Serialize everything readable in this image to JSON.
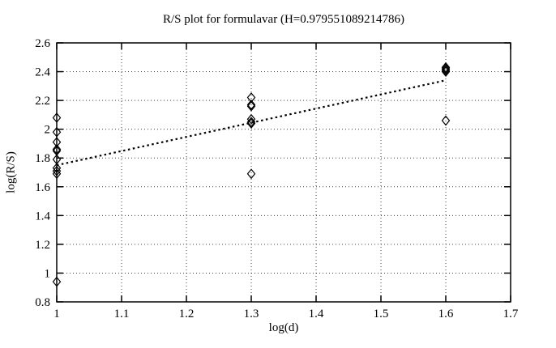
{
  "figure": {
    "background": "#ffffff",
    "foreground": "#000000",
    "grid_color": "#000000",
    "marker": "open-diamond"
  },
  "chart_data": {
    "type": "scatter",
    "title": "R/S plot for formulavar (H=0.979551089214786)",
    "hurst_exponent": "0.979551089214786",
    "xlabel": "log(d)",
    "ylabel": "log(R/S)",
    "xlim": [
      1.0,
      1.7
    ],
    "ylim": [
      0.8,
      2.6
    ],
    "x_ticks": [
      1,
      1.1,
      1.2,
      1.3,
      1.4,
      1.5,
      1.6,
      1.7
    ],
    "x_tick_labels": [
      "1",
      "1.1",
      "1.2",
      "1.3",
      "1.4",
      "1.5",
      "1.6",
      "1.7"
    ],
    "y_ticks": [
      0.8,
      1,
      1.2,
      1.4,
      1.6,
      1.8,
      2,
      2.2,
      2.4,
      2.6
    ],
    "y_tick_labels": [
      "0.8",
      "1",
      "1.2",
      "1.4",
      "1.6",
      "1.8",
      "2",
      "2.2",
      "2.4",
      "2.6"
    ],
    "grid": true,
    "legend": "none",
    "points": [
      {
        "x": 1.0,
        "y": 2.08
      },
      {
        "x": 1.0,
        "y": 1.98
      },
      {
        "x": 1.0,
        "y": 1.91
      },
      {
        "x": 1.0,
        "y": 1.86
      },
      {
        "x": 1.0,
        "y": 1.85
      },
      {
        "x": 1.0,
        "y": 1.79
      },
      {
        "x": 1.0,
        "y": 1.73
      },
      {
        "x": 1.0,
        "y": 1.71
      },
      {
        "x": 1.0,
        "y": 1.69
      },
      {
        "x": 1.0,
        "y": 0.94
      },
      {
        "x": 1.3,
        "y": 2.22
      },
      {
        "x": 1.3,
        "y": 2.17
      },
      {
        "x": 1.3,
        "y": 2.16
      },
      {
        "x": 1.3,
        "y": 2.07
      },
      {
        "x": 1.3,
        "y": 2.05
      },
      {
        "x": 1.3,
        "y": 2.04
      },
      {
        "x": 1.3,
        "y": 1.69
      },
      {
        "x": 1.6,
        "y": 2.43
      },
      {
        "x": 1.6,
        "y": 2.42
      },
      {
        "x": 1.6,
        "y": 2.41
      },
      {
        "x": 1.6,
        "y": 2.4
      },
      {
        "x": 1.6,
        "y": 2.06
      }
    ],
    "trend_line": {
      "style": "dotted-bold",
      "x_start": 1.0,
      "y_start": 1.75,
      "x_end": 1.6,
      "y_end": 2.34
    }
  }
}
